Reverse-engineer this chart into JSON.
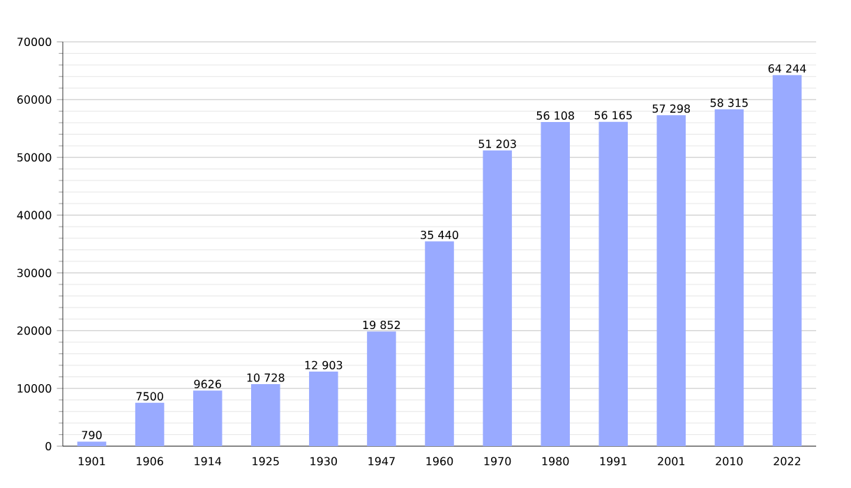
{
  "chart_data": {
    "type": "bar",
    "categories": [
      "1901",
      "1906",
      "1914",
      "1925",
      "1930",
      "1947",
      "1960",
      "1970",
      "1980",
      "1991",
      "2001",
      "2010",
      "2022"
    ],
    "values": [
      790,
      7500,
      9626,
      10728,
      12903,
      19852,
      35440,
      51203,
      56108,
      56165,
      57298,
      58315,
      64244
    ],
    "value_labels": [
      "790",
      "7500",
      "9626",
      "10 728",
      "12 903",
      "19 852",
      "35 440",
      "51 203",
      "56 108",
      "56 165",
      "57 298",
      "58 315",
      "64 244"
    ],
    "color": "#99aaff",
    "ylim": [
      0,
      70000
    ],
    "yticks": [
      0,
      10000,
      20000,
      30000,
      40000,
      50000,
      60000,
      70000
    ],
    "grid": "y"
  }
}
